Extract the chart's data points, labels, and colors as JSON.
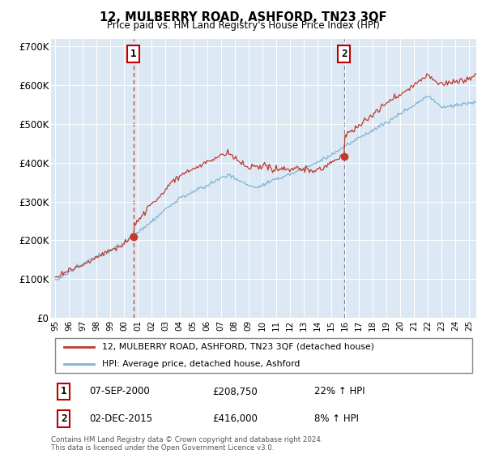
{
  "title": "12, MULBERRY ROAD, ASHFORD, TN23 3QF",
  "subtitle": "Price paid vs. HM Land Registry's House Price Index (HPI)",
  "plot_bg_color": "#dce9f5",
  "red_line_label": "12, MULBERRY ROAD, ASHFORD, TN23 3QF (detached house)",
  "blue_line_label": "HPI: Average price, detached house, Ashford",
  "annotation1_date": "07-SEP-2000",
  "annotation1_price": "£208,750",
  "annotation1_hpi": "22% ↑ HPI",
  "annotation1_year": 2000.67,
  "annotation1_value": 208750,
  "annotation2_date": "02-DEC-2015",
  "annotation2_price": "£416,000",
  "annotation2_hpi": "8% ↑ HPI",
  "annotation2_year": 2015.92,
  "annotation2_value": 416000,
  "footnote": "Contains HM Land Registry data © Crown copyright and database right 2024.\nThis data is licensed under the Open Government Licence v3.0.",
  "ylim": [
    0,
    720000
  ],
  "yticks": [
    0,
    100000,
    200000,
    300000,
    400000,
    500000,
    600000,
    700000
  ],
  "ytick_labels": [
    "£0",
    "£100K",
    "£200K",
    "£300K",
    "£400K",
    "£500K",
    "£600K",
    "£700K"
  ],
  "xstart": 1995,
  "xend": 2025,
  "red_color": "#c0392b",
  "blue_color": "#7fb3d3",
  "vline1_color": "#c0392b",
  "vline2_color": "#808080"
}
